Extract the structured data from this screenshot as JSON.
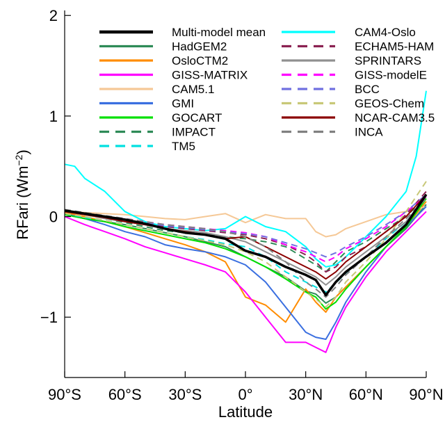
{
  "chart_data": {
    "type": "line",
    "xlabel": "Latitude",
    "ylabel": "RFari (Wm",
    "ylabel_sup": "−2",
    "ylabel_close": ")",
    "xlim": [
      -90,
      90
    ],
    "ylim": [
      -1.6,
      2.05
    ],
    "xticks": [
      {
        "value": -90,
        "label": "90°S"
      },
      {
        "value": -60,
        "label": "60°S"
      },
      {
        "value": -30,
        "label": "30°S"
      },
      {
        "value": 0,
        "label": "0°"
      },
      {
        "value": 30,
        "label": "30°N"
      },
      {
        "value": 60,
        "label": "60°N"
      },
      {
        "value": 90,
        "label": "90°N"
      }
    ],
    "yticks": [
      {
        "value": -1,
        "label": "−1"
      },
      {
        "value": 0,
        "label": "0"
      },
      {
        "value": 1,
        "label": "1"
      },
      {
        "value": 2,
        "label": "2"
      }
    ],
    "legend_position": "top",
    "series": [
      {
        "name": "Multi-model mean",
        "color": "#000000",
        "dash": "solid",
        "width": 3.5,
        "x": [
          -90,
          -80,
          -70,
          -60,
          -50,
          -40,
          -30,
          -20,
          -10,
          0,
          10,
          20,
          30,
          35,
          40,
          45,
          50,
          60,
          70,
          80,
          90
        ],
        "y": [
          0.06,
          0.03,
          0.0,
          -0.03,
          -0.07,
          -0.12,
          -0.16,
          -0.18,
          -0.22,
          -0.34,
          -0.4,
          -0.5,
          -0.58,
          -0.63,
          -0.78,
          -0.65,
          -0.55,
          -0.4,
          -0.26,
          -0.08,
          0.22
        ]
      },
      {
        "name": "HadGEM2",
        "color": "#2e8b57",
        "dash": "solid",
        "width": 2,
        "x": [
          -90,
          -80,
          -70,
          -60,
          -50,
          -40,
          -30,
          -20,
          -10,
          0,
          10,
          20,
          30,
          35,
          40,
          45,
          50,
          60,
          70,
          80,
          90
        ],
        "y": [
          0.02,
          -0.02,
          -0.05,
          -0.08,
          -0.12,
          -0.16,
          -0.2,
          -0.25,
          -0.3,
          -0.4,
          -0.5,
          -0.6,
          -0.74,
          -0.77,
          -0.86,
          -0.8,
          -0.7,
          -0.5,
          -0.3,
          -0.12,
          0.12
        ]
      },
      {
        "name": "OsloCTM2",
        "color": "#ff8c00",
        "dash": "solid",
        "width": 2,
        "x": [
          -90,
          -80,
          -70,
          -60,
          -50,
          -40,
          -30,
          -20,
          -10,
          0,
          10,
          20,
          30,
          35,
          40,
          45,
          50,
          60,
          70,
          80,
          90
        ],
        "y": [
          0.04,
          0.0,
          -0.05,
          -0.1,
          -0.16,
          -0.22,
          -0.28,
          -0.35,
          -0.45,
          -0.8,
          -0.88,
          -1.05,
          -0.72,
          -0.85,
          -0.95,
          -0.8,
          -0.7,
          -0.5,
          -0.3,
          -0.1,
          0.15
        ]
      },
      {
        "name": "GISS-MATRIX",
        "color": "#ff00ff",
        "dash": "solid",
        "width": 2,
        "x": [
          -90,
          -80,
          -70,
          -60,
          -50,
          -40,
          -30,
          -20,
          -10,
          0,
          10,
          20,
          30,
          35,
          40,
          45,
          50,
          60,
          70,
          80,
          90
        ],
        "y": [
          0.0,
          -0.08,
          -0.15,
          -0.22,
          -0.3,
          -0.36,
          -0.42,
          -0.48,
          -0.55,
          -0.75,
          -1.0,
          -1.25,
          -1.25,
          -1.3,
          -1.35,
          -1.1,
          -0.9,
          -0.6,
          -0.35,
          -0.15,
          0.05
        ]
      },
      {
        "name": "CAM5.1",
        "color": "#f5c896",
        "dash": "solid",
        "width": 2,
        "x": [
          -90,
          -80,
          -70,
          -60,
          -50,
          -40,
          -30,
          -20,
          -10,
          0,
          10,
          20,
          30,
          35,
          40,
          45,
          50,
          60,
          70,
          80,
          90
        ],
        "y": [
          0.05,
          0.04,
          0.03,
          0.02,
          0.0,
          -0.02,
          -0.03,
          0.0,
          0.03,
          -0.06,
          0.02,
          -0.02,
          -0.02,
          -0.15,
          -0.2,
          -0.18,
          -0.12,
          -0.05,
          0.02,
          0.05,
          0.1
        ]
      },
      {
        "name": "GMI",
        "color": "#3a6fe0",
        "dash": "solid",
        "width": 2,
        "x": [
          -90,
          -80,
          -70,
          -60,
          -50,
          -40,
          -30,
          -20,
          -10,
          0,
          10,
          20,
          30,
          35,
          40,
          45,
          50,
          60,
          70,
          80,
          90
        ],
        "y": [
          0.03,
          -0.02,
          -0.08,
          -0.15,
          -0.2,
          -0.28,
          -0.32,
          -0.35,
          -0.4,
          -0.48,
          -0.65,
          -0.9,
          -1.15,
          -1.2,
          -1.22,
          -1.05,
          -0.85,
          -0.55,
          -0.3,
          -0.1,
          0.1
        ]
      },
      {
        "name": "GOCART",
        "color": "#00e000",
        "dash": "solid",
        "width": 2,
        "x": [
          -90,
          -80,
          -70,
          -60,
          -50,
          -40,
          -30,
          -20,
          -10,
          0,
          10,
          20,
          30,
          35,
          40,
          45,
          50,
          60,
          70,
          80,
          90
        ],
        "y": [
          0.02,
          -0.02,
          -0.05,
          -0.1,
          -0.14,
          -0.18,
          -0.22,
          -0.26,
          -0.32,
          -0.4,
          -0.5,
          -0.62,
          -0.75,
          -0.8,
          -0.92,
          -0.85,
          -0.72,
          -0.5,
          -0.3,
          -0.1,
          0.18
        ]
      },
      {
        "name": "IMPACT",
        "color": "#2e8b57",
        "dash": "dashed",
        "width": 2,
        "x": [
          -90,
          -80,
          -70,
          -60,
          -50,
          -40,
          -30,
          -20,
          -10,
          0,
          10,
          20,
          30,
          35,
          40,
          45,
          50,
          60,
          70,
          80,
          90
        ],
        "y": [
          0.05,
          0.02,
          -0.02,
          -0.06,
          -0.1,
          -0.14,
          -0.16,
          -0.18,
          -0.2,
          -0.22,
          -0.25,
          -0.3,
          -0.42,
          -0.48,
          -0.55,
          -0.45,
          -0.35,
          -0.25,
          -0.12,
          0.0,
          0.2
        ]
      },
      {
        "name": "TM5",
        "color": "#00e0e0",
        "dash": "dashed",
        "width": 2,
        "x": [
          -90,
          -80,
          -70,
          -60,
          -50,
          -40,
          -30,
          -20,
          -10,
          0,
          10,
          20,
          30,
          35,
          40,
          45,
          50,
          60,
          70,
          80,
          90
        ],
        "y": [
          0.03,
          -0.01,
          -0.04,
          -0.08,
          -0.12,
          -0.16,
          -0.2,
          -0.23,
          -0.27,
          -0.3,
          -0.4,
          -0.55,
          -0.65,
          -0.7,
          -0.75,
          -0.66,
          -0.56,
          -0.4,
          -0.22,
          -0.05,
          0.2
        ]
      },
      {
        "name": "CAM4-Oslo",
        "color": "#00ffff",
        "dash": "solid",
        "width": 2,
        "x": [
          -90,
          -85,
          -80,
          -70,
          -60,
          -50,
          -40,
          -30,
          -20,
          -10,
          0,
          10,
          20,
          30,
          35,
          40,
          45,
          50,
          60,
          70,
          80,
          85,
          90
        ],
        "y": [
          0.52,
          0.5,
          0.38,
          0.25,
          0.05,
          -0.05,
          -0.1,
          -0.12,
          -0.14,
          -0.12,
          0.0,
          -0.1,
          -0.15,
          -0.3,
          -0.42,
          -0.5,
          -0.48,
          -0.4,
          -0.2,
          0.0,
          0.25,
          0.6,
          1.25
        ]
      },
      {
        "name": "ECHAM5-HAM",
        "color": "#8b2252",
        "dash": "dashed",
        "width": 2,
        "x": [
          -90,
          -80,
          -70,
          -60,
          -50,
          -40,
          -30,
          -20,
          -10,
          0,
          10,
          20,
          30,
          35,
          40,
          45,
          50,
          60,
          70,
          80,
          90
        ],
        "y": [
          0.05,
          0.02,
          -0.01,
          -0.04,
          -0.07,
          -0.1,
          -0.12,
          -0.14,
          -0.16,
          -0.18,
          -0.22,
          -0.28,
          -0.38,
          -0.45,
          -0.55,
          -0.5,
          -0.4,
          -0.3,
          -0.15,
          0.02,
          0.25
        ]
      },
      {
        "name": "SPRINTARS",
        "color": "#909090",
        "dash": "solid",
        "width": 2,
        "x": [
          -90,
          -80,
          -70,
          -60,
          -50,
          -40,
          -30,
          -20,
          -10,
          0,
          10,
          20,
          30,
          35,
          40,
          45,
          50,
          60,
          70,
          80,
          90
        ],
        "y": [
          0.05,
          0.02,
          -0.02,
          -0.05,
          -0.08,
          -0.12,
          -0.14,
          -0.16,
          -0.2,
          -0.25,
          -0.35,
          -0.45,
          -0.55,
          -0.6,
          -0.68,
          -0.6,
          -0.5,
          -0.35,
          -0.2,
          -0.05,
          0.2
        ]
      },
      {
        "name": "GISS-modelE",
        "color": "#ff00ff",
        "dash": "dashed",
        "width": 2,
        "x": [
          -90,
          -80,
          -70,
          -60,
          -50,
          -40,
          -30,
          -20,
          -10,
          0,
          10,
          20,
          30,
          35,
          40,
          45,
          50,
          60,
          70,
          80,
          90
        ],
        "y": [
          0.05,
          0.03,
          0.0,
          -0.02,
          -0.05,
          -0.08,
          -0.1,
          -0.12,
          -0.14,
          -0.16,
          -0.2,
          -0.28,
          -0.35,
          -0.4,
          -0.45,
          -0.4,
          -0.32,
          -0.22,
          -0.1,
          0.05,
          0.2
        ]
      },
      {
        "name": "BCC",
        "color": "#7070e0",
        "dash": "dashed",
        "width": 2,
        "x": [
          -90,
          -80,
          -70,
          -60,
          -50,
          -40,
          -30,
          -20,
          -10,
          0,
          10,
          20,
          30,
          35,
          40,
          45,
          50,
          60,
          70,
          80,
          90
        ],
        "y": [
          0.05,
          0.03,
          0.0,
          -0.03,
          -0.06,
          -0.09,
          -0.11,
          -0.13,
          -0.15,
          -0.17,
          -0.2,
          -0.26,
          -0.32,
          -0.36,
          -0.4,
          -0.36,
          -0.3,
          -0.2,
          -0.08,
          0.05,
          0.22
        ]
      },
      {
        "name": "GEOS-Chem",
        "color": "#c8c878",
        "dash": "dashed",
        "width": 2,
        "x": [
          -90,
          -80,
          -70,
          -60,
          -50,
          -40,
          -30,
          -20,
          -10,
          0,
          10,
          20,
          30,
          35,
          40,
          45,
          50,
          60,
          70,
          80,
          90
        ],
        "y": [
          0.03,
          0.0,
          -0.04,
          -0.08,
          -0.12,
          -0.16,
          -0.2,
          -0.24,
          -0.28,
          -0.35,
          -0.45,
          -0.6,
          -0.75,
          -0.82,
          -0.9,
          -0.8,
          -0.65,
          -0.45,
          -0.22,
          0.05,
          0.35
        ]
      },
      {
        "name": "NCAR-CAM3.5",
        "color": "#8b0000",
        "dash": "solid",
        "width": 2,
        "x": [
          -90,
          -80,
          -70,
          -60,
          -50,
          -40,
          -30,
          -20,
          -10,
          0,
          10,
          20,
          30,
          35,
          40,
          45,
          50,
          60,
          70,
          80,
          90
        ],
        "y": [
          0.05,
          0.02,
          -0.01,
          -0.05,
          -0.08,
          -0.12,
          -0.15,
          -0.18,
          -0.22,
          -0.2,
          -0.3,
          -0.4,
          -0.5,
          -0.55,
          -0.62,
          -0.55,
          -0.45,
          -0.3,
          -0.15,
          0.0,
          0.22
        ]
      },
      {
        "name": "INCA",
        "color": "#808080",
        "dash": "dashed",
        "width": 2,
        "x": [
          -90,
          -80,
          -70,
          -60,
          -50,
          -40,
          -30,
          -20,
          -10,
          0,
          10,
          20,
          30,
          35,
          40,
          45,
          50,
          60,
          70,
          80,
          90
        ],
        "y": [
          0.07,
          0.04,
          0.01,
          -0.02,
          -0.05,
          -0.08,
          -0.1,
          -0.12,
          -0.15,
          -0.2,
          -0.3,
          -0.45,
          -0.65,
          -0.72,
          -0.8,
          -0.7,
          -0.58,
          -0.4,
          -0.2,
          -0.02,
          0.18
        ]
      }
    ]
  }
}
